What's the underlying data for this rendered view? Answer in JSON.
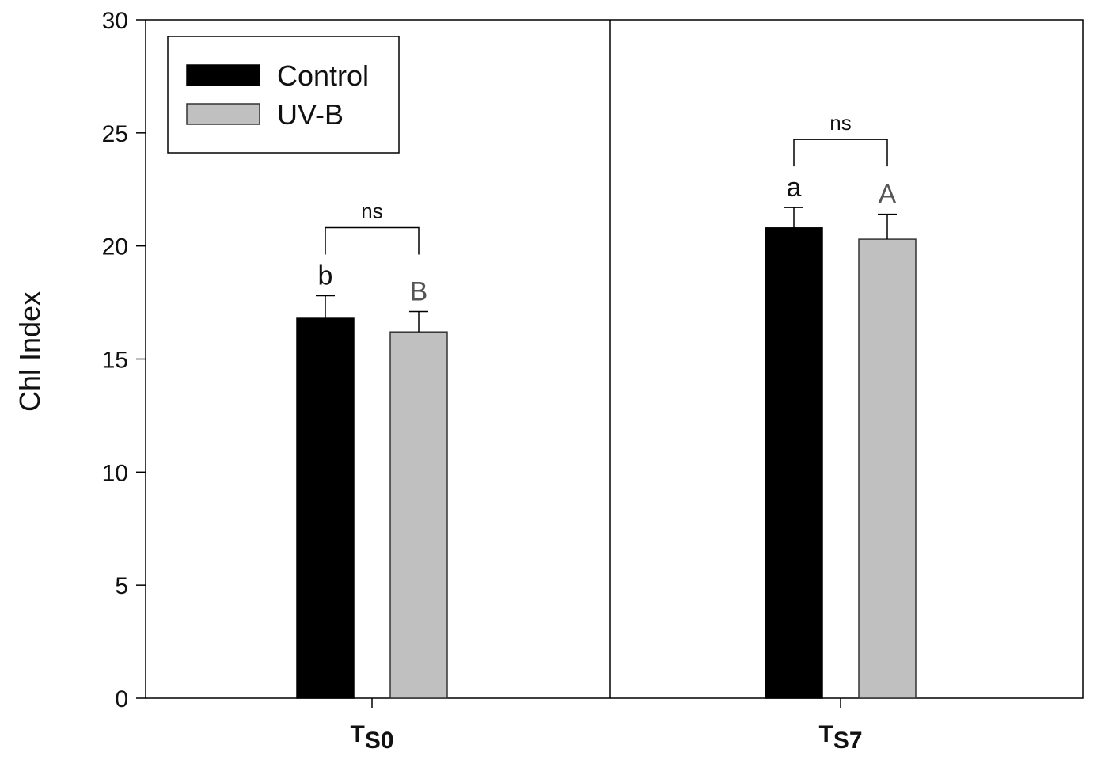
{
  "chart_data": {
    "type": "bar",
    "title": "",
    "xlabel": "",
    "ylabel": "Chl Index",
    "ylim": [
      0,
      30
    ],
    "yticks": [
      0,
      5,
      10,
      15,
      20,
      25,
      30
    ],
    "grid": false,
    "legend_position": "top-left",
    "categories": [
      {
        "main": "T",
        "sub": "S0"
      },
      {
        "main": "T",
        "sub": "S7"
      }
    ],
    "series": [
      {
        "name": "Control",
        "color": "#000000",
        "values": [
          16.8,
          20.8
        ],
        "errors": [
          1.0,
          0.9
        ],
        "letters": [
          "b",
          "a"
        ],
        "letter_color": "#111111"
      },
      {
        "name": "UV-B",
        "color": "#c0c0c0",
        "values": [
          16.2,
          20.3
        ],
        "errors": [
          0.9,
          1.1
        ],
        "letters": [
          "B",
          "A"
        ],
        "letter_color": "#555555"
      }
    ],
    "comparisons": [
      "ns",
      "ns"
    ]
  }
}
